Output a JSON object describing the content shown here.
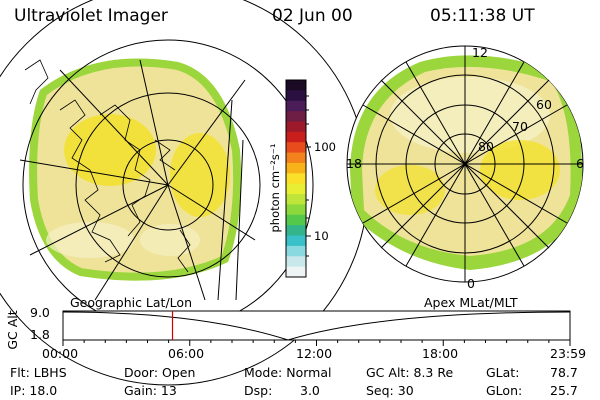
{
  "header": {
    "title": "Ultraviolet Imager",
    "date": "02 Jun 00",
    "time": "05:11:38 UT"
  },
  "colorbar": {
    "unit_label": "photon cm⁻²s⁻¹",
    "ticks": [
      "100",
      "10"
    ],
    "colors": [
      "#1a0a24",
      "#2a1040",
      "#4a1c58",
      "#6e1d44",
      "#9c1a2a",
      "#c81f1c",
      "#e84b1c",
      "#f4821c",
      "#f8b21a",
      "#fbe02a",
      "#e8ee34",
      "#bfe43a",
      "#8ad83c",
      "#54c84a",
      "#34b48a",
      "#3ac0c8",
      "#8ad8e0",
      "#c8e8ec",
      "#eef3f3"
    ]
  },
  "map_colors": {
    "bg": "#efe39a",
    "bright": "#f2e12a",
    "green": "#9bd63c",
    "pale": "#f6f1c8"
  },
  "polar": {
    "lat_labels": [
      "80",
      "70",
      "60"
    ],
    "mlt_labels": {
      "top": "12",
      "left": "18",
      "right": "6",
      "bottom": "0"
    }
  },
  "timeline": {
    "left_title": "Geographic Lat/Lon",
    "right_title": "Apex MLat/MLT",
    "axis_label": "GC Alt",
    "y_max": "9.0",
    "y_min": "1.8",
    "x_ticks": [
      "00:00",
      "06:00",
      "12:00",
      "18:00",
      "23:59"
    ],
    "current_time_fraction": 0.216,
    "marker_color": "#d00000"
  },
  "info": {
    "filter": "Flt: LBHS",
    "door": "Door: Open",
    "mode": "Mode: Normal",
    "gc_alt": "GC Alt: 8.3 Re",
    "glat_label": "GLat:",
    "glat_value": "78.7",
    "ip": "IP: 18.0",
    "gain": "Gain: 13",
    "dsp_label": "Dsp:",
    "dsp_value": "3.0",
    "seq": "Seq: 30",
    "glon_label": "GLon:",
    "glon_value": "25.7"
  }
}
